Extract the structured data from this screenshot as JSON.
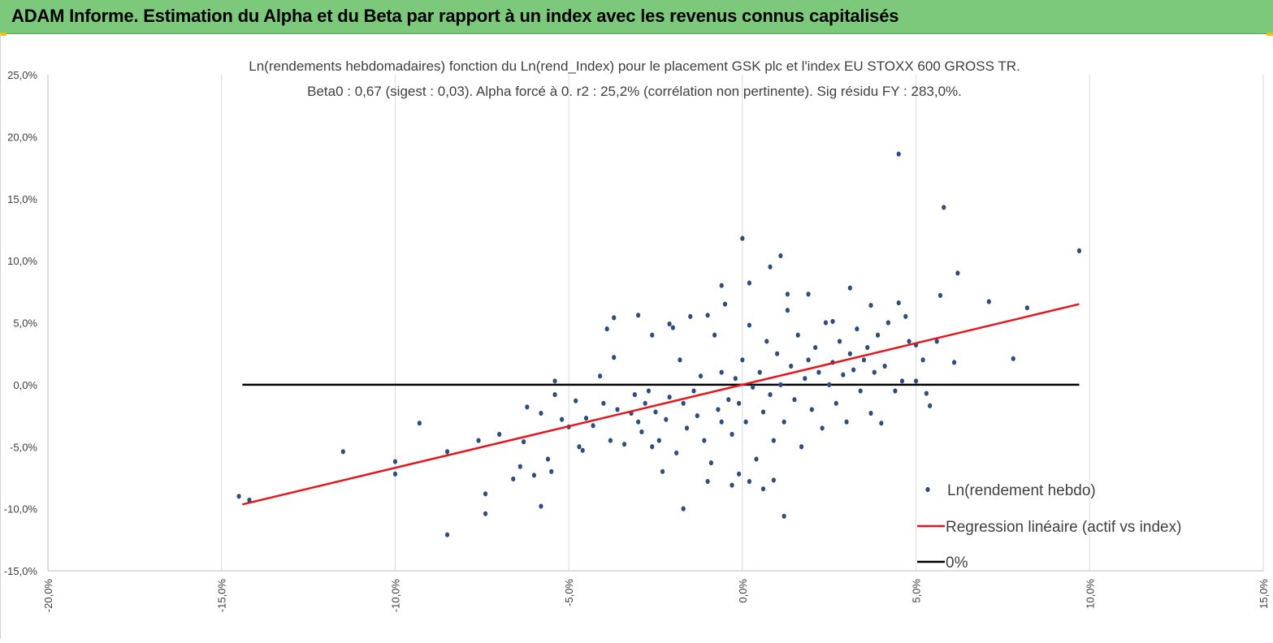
{
  "banner": {
    "title": "ADAM Informe. Estimation du Alpha et du Beta par rapport à un index avec les revenus connus capitalisés"
  },
  "colors": {
    "banner_bg": "#7cc97c",
    "points": "#2e4d7e",
    "regression": "#e8141c",
    "zero_line": "#000000",
    "grid": "#d9d9d9"
  },
  "chart_data": {
    "type": "scatter",
    "title": "Ln(rendements hebdomadaires) fonction du Ln(rend_Index) pour le placement GSK plc et l'index EU STOXX 600 GROSS TR.",
    "subtitle": "Beta0 : 0,67 (sigest : 0,03). Alpha forcé à 0. r2 : 25,2% (corrélation non pertinente). Sig résidu FY : 283,0%.",
    "xlabel": "",
    "ylabel": "",
    "xlim": [
      -0.2,
      0.15
    ],
    "ylim": [
      -0.15,
      0.25
    ],
    "x_ticks": [
      -0.2,
      -0.15,
      -0.1,
      -0.05,
      0.0,
      0.05,
      0.1,
      0.15
    ],
    "x_tick_labels": [
      "-20,0%",
      "-15,0%",
      "-10,0%",
      "-5,0%",
      "0,0%",
      "5,0%",
      "10,0%",
      "15,0%"
    ],
    "y_ticks": [
      -0.15,
      -0.1,
      -0.05,
      0.0,
      0.05,
      0.1,
      0.15,
      0.2,
      0.25
    ],
    "y_tick_labels": [
      "-15,0%",
      "-10,0%",
      "-5,0%",
      "0,0%",
      "5,0%",
      "10,0%",
      "15,0%",
      "20,0%",
      "25,0%"
    ],
    "grid": "vertical",
    "legend_position": "bottom-right",
    "series": [
      {
        "name": "Ln(rendement hebdo)",
        "kind": "scatter",
        "points": [
          [
            -0.145,
            -0.09
          ],
          [
            -0.142,
            -0.093
          ],
          [
            -0.115,
            -0.054
          ],
          [
            -0.1,
            -0.062
          ],
          [
            -0.1,
            -0.072
          ],
          [
            -0.093,
            -0.031
          ],
          [
            -0.085,
            -0.054
          ],
          [
            -0.085,
            -0.121
          ],
          [
            -0.076,
            -0.045
          ],
          [
            -0.074,
            -0.088
          ],
          [
            -0.074,
            -0.104
          ],
          [
            -0.07,
            -0.04
          ],
          [
            -0.066,
            -0.076
          ],
          [
            -0.064,
            -0.066
          ],
          [
            -0.063,
            -0.046
          ],
          [
            -0.062,
            -0.018
          ],
          [
            -0.06,
            -0.073
          ],
          [
            -0.058,
            -0.023
          ],
          [
            -0.058,
            -0.098
          ],
          [
            -0.056,
            -0.06
          ],
          [
            -0.055,
            -0.07
          ],
          [
            -0.054,
            -0.008
          ],
          [
            -0.052,
            -0.028
          ],
          [
            -0.05,
            -0.034
          ],
          [
            -0.054,
            0.003
          ],
          [
            -0.048,
            -0.013
          ],
          [
            -0.047,
            -0.05
          ],
          [
            -0.046,
            -0.053
          ],
          [
            -0.045,
            -0.027
          ],
          [
            -0.043,
            -0.033
          ],
          [
            -0.041,
            0.007
          ],
          [
            -0.04,
            -0.015
          ],
          [
            -0.038,
            -0.045
          ],
          [
            -0.037,
            0.022
          ],
          [
            -0.036,
            -0.02
          ],
          [
            -0.034,
            -0.048
          ],
          [
            -0.032,
            -0.023
          ],
          [
            -0.031,
            -0.008
          ],
          [
            -0.03,
            -0.03
          ],
          [
            -0.029,
            -0.038
          ],
          [
            -0.028,
            -0.015
          ],
          [
            -0.027,
            -0.005
          ],
          [
            -0.026,
            -0.05
          ],
          [
            -0.025,
            -0.022
          ],
          [
            -0.024,
            -0.045
          ],
          [
            -0.023,
            -0.07
          ],
          [
            -0.022,
            -0.028
          ],
          [
            -0.021,
            -0.01
          ],
          [
            -0.02,
            0.046
          ],
          [
            -0.019,
            -0.055
          ],
          [
            -0.018,
            0.02
          ],
          [
            -0.017,
            -0.015
          ],
          [
            -0.016,
            -0.035
          ],
          [
            -0.015,
            0.055
          ],
          [
            -0.014,
            -0.005
          ],
          [
            -0.013,
            -0.025
          ],
          [
            -0.012,
            0.007
          ],
          [
            -0.011,
            -0.045
          ],
          [
            -0.01,
            0.056
          ],
          [
            -0.009,
            -0.063
          ],
          [
            -0.008,
            0.04
          ],
          [
            -0.007,
            -0.02
          ],
          [
            -0.006,
            -0.03
          ],
          [
            -0.006,
            0.01
          ],
          [
            -0.005,
            0.065
          ],
          [
            -0.004,
            -0.012
          ],
          [
            -0.003,
            -0.04
          ],
          [
            -0.002,
            0.005
          ],
          [
            -0.001,
            -0.015
          ],
          [
            -0.001,
            -0.072
          ],
          [
            0.0,
            0.02
          ],
          [
            0.001,
            -0.03
          ],
          [
            0.002,
            0.048
          ],
          [
            0.003,
            -0.002
          ],
          [
            0.004,
            -0.06
          ],
          [
            0.005,
            0.01
          ],
          [
            0.006,
            -0.022
          ],
          [
            0.007,
            0.035
          ],
          [
            0.008,
            -0.008
          ],
          [
            0.009,
            -0.045
          ],
          [
            0.01,
            0.025
          ],
          [
            0.011,
            0.0
          ],
          [
            0.012,
            -0.03
          ],
          [
            0.013,
            0.06
          ],
          [
            0.014,
            0.015
          ],
          [
            0.015,
            -0.012
          ],
          [
            0.016,
            0.04
          ],
          [
            0.017,
            -0.05
          ],
          [
            0.018,
            0.005
          ],
          [
            0.019,
            0.02
          ],
          [
            0.02,
            -0.02
          ],
          [
            0.021,
            0.03
          ],
          [
            0.022,
            0.01
          ],
          [
            0.023,
            -0.035
          ],
          [
            0.024,
            0.05
          ],
          [
            0.025,
            0.0
          ],
          [
            0.026,
            0.018
          ],
          [
            0.027,
            -0.015
          ],
          [
            0.028,
            0.035
          ],
          [
            0.029,
            0.008
          ],
          [
            0.03,
            -0.03
          ],
          [
            0.031,
            0.025
          ],
          [
            0.032,
            0.012
          ],
          [
            0.033,
            0.045
          ],
          [
            0.034,
            -0.005
          ],
          [
            0.035,
            0.02
          ],
          [
            0.036,
            0.03
          ],
          [
            0.037,
            -0.023
          ],
          [
            0.038,
            0.01
          ],
          [
            0.039,
            0.04
          ],
          [
            0.04,
            -0.031
          ],
          [
            0.041,
            0.015
          ],
          [
            0.042,
            0.05
          ],
          [
            0.044,
            -0.005
          ],
          [
            0.045,
            0.066
          ],
          [
            0.046,
            0.003
          ],
          [
            0.047,
            0.055
          ],
          [
            0.048,
            0.035
          ],
          [
            0.05,
            0.032
          ],
          [
            0.05,
            0.003
          ],
          [
            0.052,
            0.02
          ],
          [
            0.053,
            -0.007
          ],
          [
            0.054,
            -0.017
          ],
          [
            0.056,
            0.035
          ],
          [
            0.057,
            0.072
          ],
          [
            0.058,
            0.143
          ],
          [
            0.061,
            0.018
          ],
          [
            0.062,
            0.09
          ],
          [
            0.071,
            0.067
          ],
          [
            0.078,
            0.021
          ],
          [
            0.082,
            0.062
          ],
          [
            0.097,
            0.108
          ],
          [
            0.045,
            0.186
          ],
          [
            0.0,
            0.118
          ],
          [
            0.011,
            0.104
          ],
          [
            0.008,
            0.095
          ],
          [
            -0.006,
            0.08
          ],
          [
            0.002,
            0.082
          ],
          [
            0.019,
            0.073
          ],
          [
            0.031,
            0.078
          ],
          [
            -0.037,
            0.054
          ],
          [
            -0.03,
            0.056
          ],
          [
            -0.039,
            0.045
          ],
          [
            -0.026,
            0.04
          ],
          [
            0.013,
            0.073
          ],
          [
            -0.021,
            0.049
          ],
          [
            0.026,
            0.051
          ],
          [
            0.037,
            0.064
          ],
          [
            -0.017,
            -0.1
          ],
          [
            0.012,
            -0.106
          ],
          [
            -0.01,
            -0.078
          ],
          [
            -0.003,
            -0.081
          ],
          [
            0.002,
            -0.078
          ],
          [
            0.006,
            -0.084
          ],
          [
            0.009,
            -0.077
          ]
        ]
      },
      {
        "name": "Regression linéaire (actif vs index)",
        "kind": "line",
        "points": [
          [
            -0.144,
            -0.0965
          ],
          [
            0.097,
            0.065
          ]
        ]
      },
      {
        "name": "0%",
        "kind": "line",
        "points": [
          [
            -0.144,
            0.0
          ],
          [
            0.097,
            0.0
          ]
        ]
      }
    ]
  }
}
